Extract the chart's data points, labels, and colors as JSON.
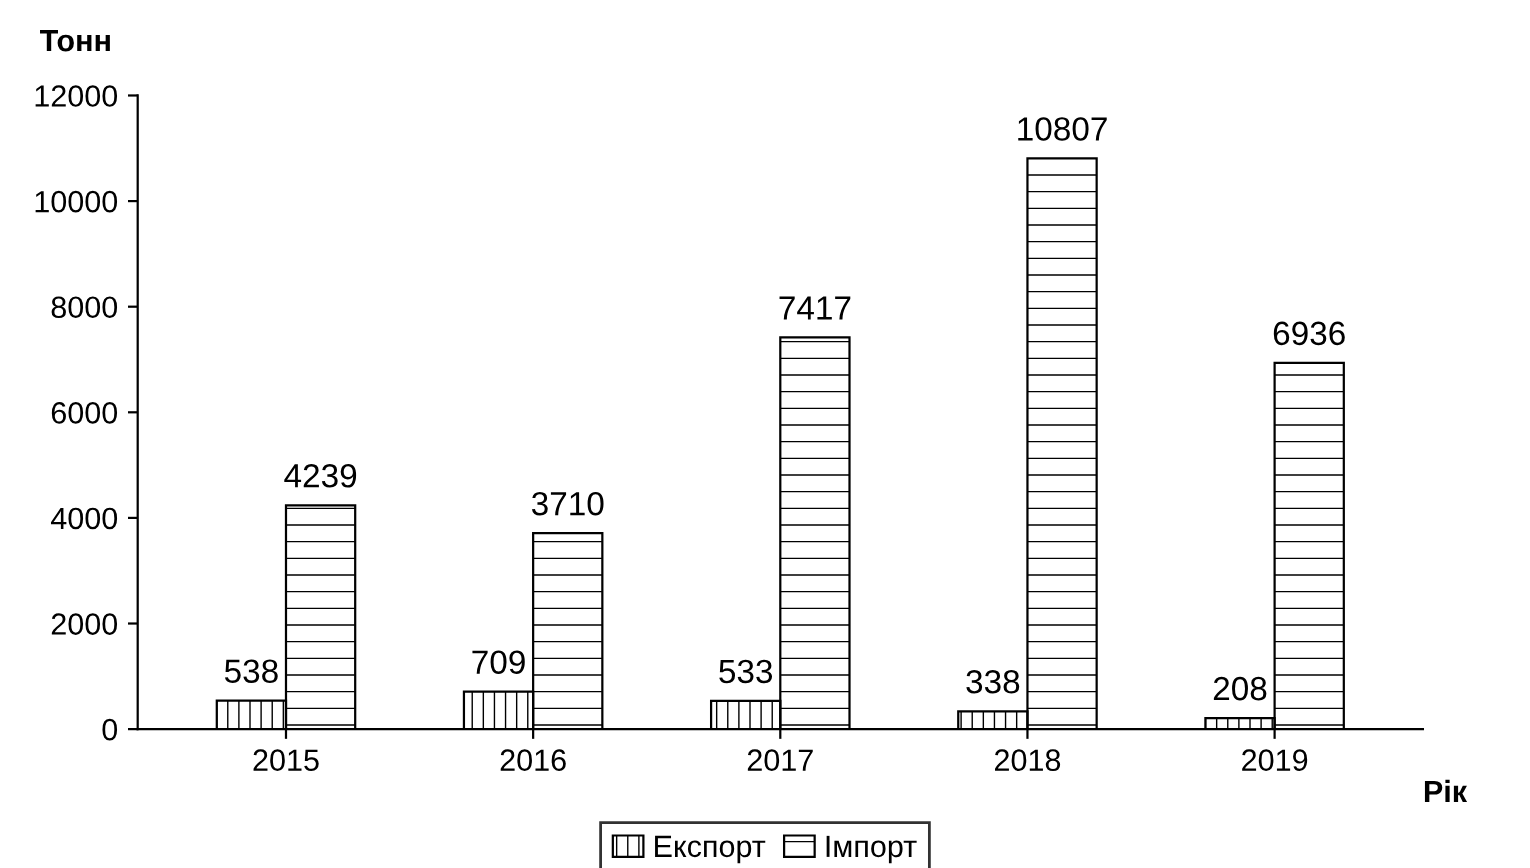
{
  "chart_data": {
    "type": "bar",
    "ylabel": "Тонн",
    "xlabel": "Рік",
    "categories": [
      "2015",
      "2016",
      "2017",
      "2018",
      "2019"
    ],
    "series": [
      {
        "name": "Експорт",
        "color": "#000000",
        "values": [
          538,
          709,
          533,
          338,
          208
        ]
      },
      {
        "name": "Імпорт",
        "color": "#000000",
        "values": [
          4239,
          3710,
          7417,
          10807,
          6936
        ]
      }
    ],
    "ylim": [
      0,
      12000
    ],
    "yticks": [
      0,
      2000,
      4000,
      6000,
      8000,
      10000,
      12000
    ],
    "grid": false,
    "legend": "bottom",
    "data_labels": true
  }
}
